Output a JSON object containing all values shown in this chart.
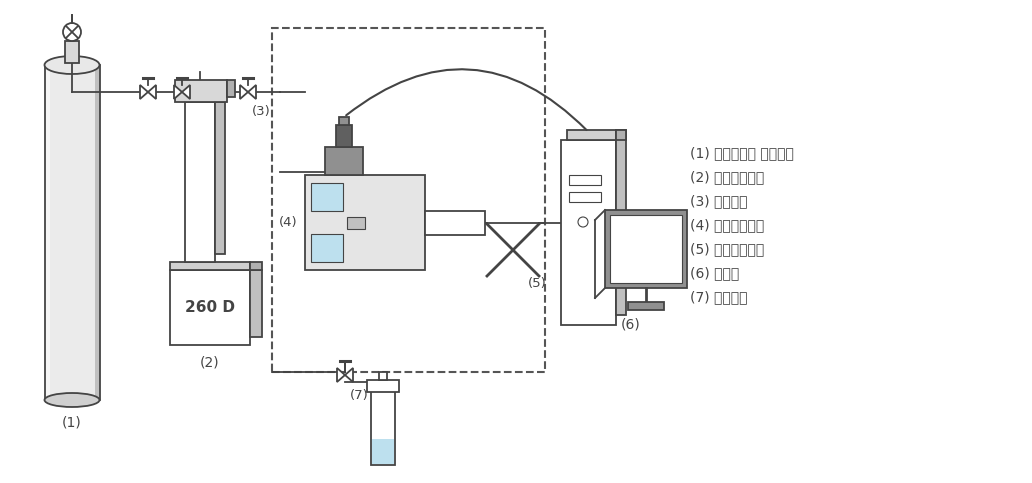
{
  "legend_items": [
    "(1) 이산화탄소 공급용기",
    "(2) 정량가압펌프",
    "(3) 입구밸브",
    "(4) 부피조절용기",
    "(5) 부피조절장치",
    "(6) 모니터",
    "(7) 출구밸브"
  ],
  "label_260D": "260 D",
  "label_1": "(1)",
  "label_2": "(2)",
  "label_3": "(3)",
  "label_4": "(4)",
  "label_5": "(5)",
  "label_6": "(6)",
  "label_7": "(7)",
  "bg_color": "#ffffff",
  "gray_light": "#d4d4d4",
  "gray_mid": "#909090",
  "gray_dark": "#606060",
  "blue_light": "#bde0ee",
  "line_color": "#444444",
  "dashed_color": "#555555"
}
